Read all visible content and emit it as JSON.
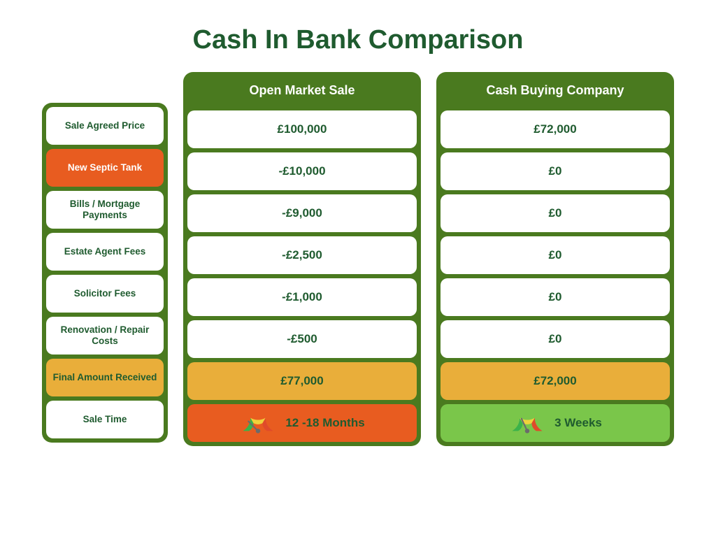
{
  "title": "Cash In Bank Comparison",
  "colors": {
    "panel_green": "#4a7a1f",
    "text_green": "#1f5b2f",
    "orange": "#e85c20",
    "amber": "#e9ae3a",
    "light_green": "#7ac64a",
    "gauge_green": "#3bb24a",
    "gauge_yellow": "#f0d23c",
    "gauge_red": "#e04a2a",
    "gauge_needle": "#6b6b6b",
    "white": "#ffffff"
  },
  "row_labels": [
    {
      "text": "Sale Agreed Price",
      "bg": "#ffffff",
      "fg": "#1f5b2f"
    },
    {
      "text": "New Septic Tank",
      "bg": "#e85c20",
      "fg": "#ffffff"
    },
    {
      "text": "Bills / Mortgage Payments",
      "bg": "#ffffff",
      "fg": "#1f5b2f"
    },
    {
      "text": "Estate Agent Fees",
      "bg": "#ffffff",
      "fg": "#1f5b2f"
    },
    {
      "text": "Solicitor Fees",
      "bg": "#ffffff",
      "fg": "#1f5b2f"
    },
    {
      "text": "Renovation / Repair Costs",
      "bg": "#ffffff",
      "fg": "#1f5b2f"
    },
    {
      "text": "Final Amount Received",
      "bg": "#e9ae3a",
      "fg": "#1f5b2f"
    },
    {
      "text": "Sale Time",
      "bg": "#ffffff",
      "fg": "#1f5b2f"
    }
  ],
  "columns": [
    {
      "header": "Open Market Sale",
      "values": [
        {
          "text": "£100,000",
          "bg": "#ffffff",
          "fg": "#1f5b2f"
        },
        {
          "text": "-£10,000",
          "bg": "#ffffff",
          "fg": "#1f5b2f"
        },
        {
          "text": "-£9,000",
          "bg": "#ffffff",
          "fg": "#1f5b2f"
        },
        {
          "text": "-£2,500",
          "bg": "#ffffff",
          "fg": "#1f5b2f"
        },
        {
          "text": "-£1,000",
          "bg": "#ffffff",
          "fg": "#1f5b2f"
        },
        {
          "text": "-£500",
          "bg": "#ffffff",
          "fg": "#1f5b2f"
        },
        {
          "text": "£77,000",
          "bg": "#e9ae3a",
          "fg": "#1f5b2f"
        }
      ],
      "sale_time": {
        "text": "12 -18 Months",
        "bg": "#e85c20",
        "fg": "#1f5b2f",
        "needle_angle": 135
      }
    },
    {
      "header": "Cash Buying Company",
      "values": [
        {
          "text": "£72,000",
          "bg": "#ffffff",
          "fg": "#1f5b2f"
        },
        {
          "text": "£0",
          "bg": "#ffffff",
          "fg": "#1f5b2f"
        },
        {
          "text": "£0",
          "bg": "#ffffff",
          "fg": "#1f5b2f"
        },
        {
          "text": "£0",
          "bg": "#ffffff",
          "fg": "#1f5b2f"
        },
        {
          "text": "£0",
          "bg": "#ffffff",
          "fg": "#1f5b2f"
        },
        {
          "text": "£0",
          "bg": "#ffffff",
          "fg": "#1f5b2f"
        },
        {
          "text": "£72,000",
          "bg": "#e9ae3a",
          "fg": "#1f5b2f"
        }
      ],
      "sale_time": {
        "text": "3 Weeks",
        "bg": "#7ac64a",
        "fg": "#1f5b2f",
        "needle_angle": 115
      }
    }
  ]
}
